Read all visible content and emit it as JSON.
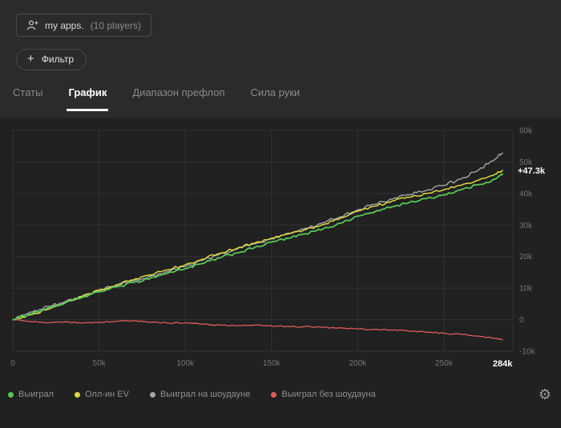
{
  "header": {
    "apps_button": {
      "label": "my apps.",
      "players": "(10 players)"
    },
    "filter_button": {
      "plus": "+",
      "label": "Фильтр"
    }
  },
  "tabs": [
    {
      "label": "Статы",
      "active": false
    },
    {
      "label": "График",
      "active": true
    },
    {
      "label": "Диапазон префлоп",
      "active": false
    },
    {
      "label": "Сила руки",
      "active": false
    }
  ],
  "chart_data": {
    "type": "line",
    "x_unit": "hands",
    "y_unit": "win (k)",
    "xlim_k": [
      0,
      290
    ],
    "ylim_k": [
      -10,
      60
    ],
    "grid": true,
    "legend_position": "bottom",
    "x_k": [
      0,
      10,
      20,
      30,
      40,
      50,
      60,
      70,
      80,
      90,
      100,
      110,
      120,
      130,
      140,
      150,
      160,
      170,
      180,
      190,
      200,
      210,
      220,
      230,
      240,
      250,
      260,
      270,
      280,
      284
    ],
    "series": [
      {
        "name": "Выиграл",
        "color": "#58c558",
        "values_k": [
          0,
          1.8,
          3.6,
          5.2,
          7,
          8.8,
          10.4,
          11.8,
          13.2,
          14.8,
          16.2,
          17.8,
          19.6,
          21.2,
          22.8,
          24.6,
          25.8,
          27.2,
          28.8,
          30.6,
          32.8,
          34.2,
          35.8,
          37.2,
          38.4,
          39.6,
          41.2,
          42.8,
          44.6,
          46.2
        ]
      },
      {
        "name": "Олл-ин EV",
        "color": "#dcd843",
        "values_k": [
          0,
          1.5,
          3.2,
          5.4,
          7.4,
          9.4,
          11,
          12.6,
          14.2,
          15.8,
          17.4,
          19.2,
          21,
          22.6,
          24.2,
          25.8,
          27.2,
          28.6,
          30.2,
          32.2,
          34.4,
          36,
          37.6,
          38.8,
          40,
          41.2,
          42.6,
          44.2,
          46.2,
          47.3
        ]
      },
      {
        "name": "Выиграл на шоудауне",
        "color": "#a2a5ab",
        "values_k": [
          0,
          2.4,
          4.2,
          5.6,
          7.2,
          9.2,
          10.8,
          12.4,
          13.8,
          15.2,
          16.8,
          18.8,
          20.8,
          22.4,
          24,
          25.6,
          27.4,
          29,
          30.8,
          32.6,
          34.8,
          36.6,
          38.2,
          39.6,
          41,
          42.6,
          44.6,
          47.4,
          51,
          52.8
        ]
      },
      {
        "name": "Выиграл без шоудауна",
        "color": "#e05c5c",
        "values_k": [
          0,
          -0.6,
          -1,
          -0.7,
          -1.1,
          -0.9,
          -0.5,
          -0.4,
          -0.8,
          -1.1,
          -1,
          -1.4,
          -1.7,
          -1.9,
          -1.7,
          -2,
          -2.2,
          -2.1,
          -2.4,
          -2.6,
          -2.9,
          -3.1,
          -3.3,
          -3.6,
          -4,
          -4.3,
          -4.6,
          -5.2,
          -6,
          -6.4
        ]
      }
    ],
    "y_ticks": [
      {
        "label": "60k",
        "value_k": 60
      },
      {
        "label": "50k",
        "value_k": 50
      },
      {
        "label": "40k",
        "value_k": 40
      },
      {
        "label": "30k",
        "value_k": 30
      },
      {
        "label": "20k",
        "value_k": 20
      },
      {
        "label": "10k",
        "value_k": 10
      },
      {
        "label": "0",
        "value_k": 0
      },
      {
        "label": "-10k",
        "value_k": -10
      }
    ],
    "x_ticks": [
      {
        "label": "0",
        "value_k": 0
      },
      {
        "label": "50k",
        "value_k": 50
      },
      {
        "label": "100k",
        "value_k": 100
      },
      {
        "label": "150k",
        "value_k": 150
      },
      {
        "label": "200k",
        "value_k": 200
      },
      {
        "label": "250k",
        "value_k": 250
      }
    ],
    "x_end": {
      "label": "284k",
      "value_k": 284
    },
    "annotation": {
      "label": "+47.3k",
      "value_k": 47.3
    },
    "colors": {
      "background": "#212121",
      "grid": "#333333",
      "axis_text": "#757575",
      "highlight_text": "#ffffff"
    }
  },
  "footer": {
    "gear_icon": "⚙"
  }
}
